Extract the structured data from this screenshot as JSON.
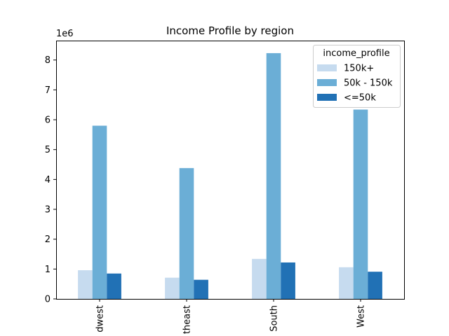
{
  "chart_data": {
    "type": "bar",
    "title": "Income Profile by region",
    "xlabel": "",
    "ylabel": "",
    "y_offset_label": "1e6",
    "categories": [
      "Midwest",
      "Northeast",
      "South",
      "West"
    ],
    "category_labels_visible": [
      "dwest",
      "theast",
      "South",
      "West"
    ],
    "yticks": [
      0,
      1,
      2,
      3,
      4,
      5,
      6,
      7,
      8
    ],
    "ylim": [
      0,
      8.65
    ],
    "legend_title": "income_profile",
    "legend_position": "upper right",
    "grid": false,
    "series": [
      {
        "name": "150k+",
        "color": "#c6dbef",
        "values": [
          0.96,
          0.71,
          1.34,
          1.06
        ]
      },
      {
        "name": "50k - 150k",
        "color": "#6baed6",
        "values": [
          5.8,
          4.38,
          8.23,
          6.34
        ]
      },
      {
        "name": "<=50k",
        "color": "#2171b5",
        "values": [
          0.85,
          0.64,
          1.22,
          0.91
        ]
      }
    ]
  }
}
